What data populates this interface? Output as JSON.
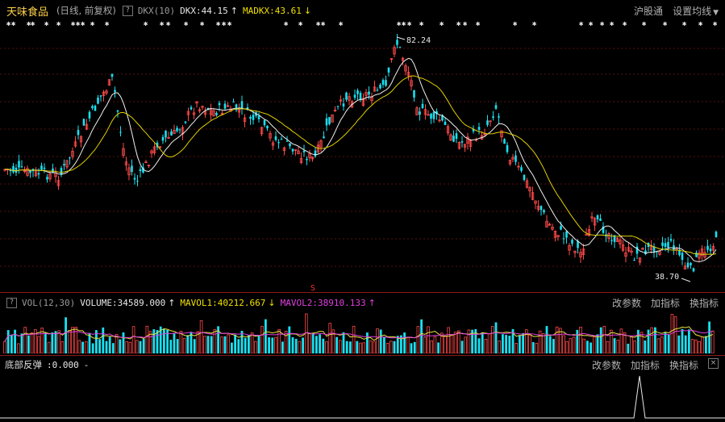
{
  "header": {
    "stock_name": "天味食品",
    "subtitle": "(日线, 前复权)",
    "help_icon": "?",
    "indicator": "DKX(10)",
    "dkx_label": "DKX:44.15",
    "madkx_label": "MADKX:43.61",
    "right": {
      "exchange": "沪股通",
      "settings": "设置均线"
    }
  },
  "volume_bar": {
    "help_icon": "?",
    "indicator": "VOL(12,30)",
    "volume": "VOLUME:34589.000",
    "mavol1": "MAVOL1:40212.667",
    "mavol2": "MAVOL2:38910.133",
    "actions": {
      "params": "改参数",
      "add": "加指标",
      "switch": "换指标"
    }
  },
  "indicator_bar": {
    "label": "底部反弹",
    "value": ":0.000",
    "dash": "-",
    "actions": {
      "params": "改参数",
      "add": "加指标",
      "switch": "换指标"
    }
  },
  "price_annotations": {
    "high": "82.24",
    "low": "38.70",
    "signal": "S"
  },
  "colors": {
    "up": "#ff4a4a",
    "down": "#19e0f0",
    "dkx": "#f0f0f0",
    "madkx": "#e0d000",
    "mavol1": "#e8e040",
    "mavol2": "#e040e0",
    "grid": "#5a1010"
  },
  "icons": {
    "arrow_up": "up-arrow-icon",
    "arrow_down": "down-arrow-icon"
  },
  "markers": [
    "✱",
    "✱",
    "✱",
    "✱",
    "✱",
    "✱",
    "✱",
    "✱",
    "✱",
    "✱",
    "✱",
    "✱",
    "✱",
    "✱",
    "✱",
    "✱",
    "✱",
    "✱",
    "✱",
    "✱",
    "✱",
    "✱",
    "✱",
    "✱",
    "✱",
    "✱",
    "✱",
    "✱",
    "✱",
    "✱",
    "✱",
    "✱",
    "✱",
    "✱",
    "✱",
    "✱",
    "✱",
    "✱",
    "✱",
    "✱",
    "✱",
    "✱",
    "✱",
    "✱",
    "✱",
    "✱",
    "✱",
    "✱",
    "✱",
    "✱"
  ]
}
